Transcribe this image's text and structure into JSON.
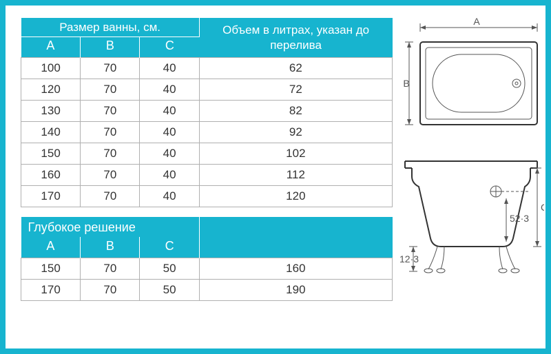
{
  "colors": {
    "accent": "#17b4cf",
    "page_bg": "#ffffff",
    "text": "#333333",
    "cell_border": "#b0b0b0",
    "diagram_line": "#555555"
  },
  "table1": {
    "header_group": "Размер ванны, см.",
    "header_vol": "Объем в литрах, указан до перелива",
    "cols": {
      "a": "A",
      "b": "B",
      "c": "C"
    },
    "col_widths_pct": [
      16,
      16,
      16,
      52
    ],
    "rows": [
      {
        "a": "100",
        "b": "70",
        "c": "40",
        "v": "62"
      },
      {
        "a": "120",
        "b": "70",
        "c": "40",
        "v": "72"
      },
      {
        "a": "130",
        "b": "70",
        "c": "40",
        "v": "82"
      },
      {
        "a": "140",
        "b": "70",
        "c": "40",
        "v": "92"
      },
      {
        "a": "150",
        "b": "70",
        "c": "40",
        "v": "102"
      },
      {
        "a": "160",
        "b": "70",
        "c": "40",
        "v": "112"
      },
      {
        "a": "170",
        "b": "70",
        "c": "40",
        "v": "120"
      }
    ]
  },
  "table2": {
    "header_title": "Глубокое решение",
    "cols": {
      "a": "A",
      "b": "B",
      "c": "C"
    },
    "rows": [
      {
        "a": "150",
        "b": "70",
        "c": "50",
        "v": "160"
      },
      {
        "a": "170",
        "b": "70",
        "c": "50",
        "v": "190"
      }
    ]
  },
  "diagram": {
    "labels": {
      "a": "A",
      "b": "B",
      "c": "C"
    },
    "overflow_offset": "52·3",
    "leg_height": "12·3"
  }
}
